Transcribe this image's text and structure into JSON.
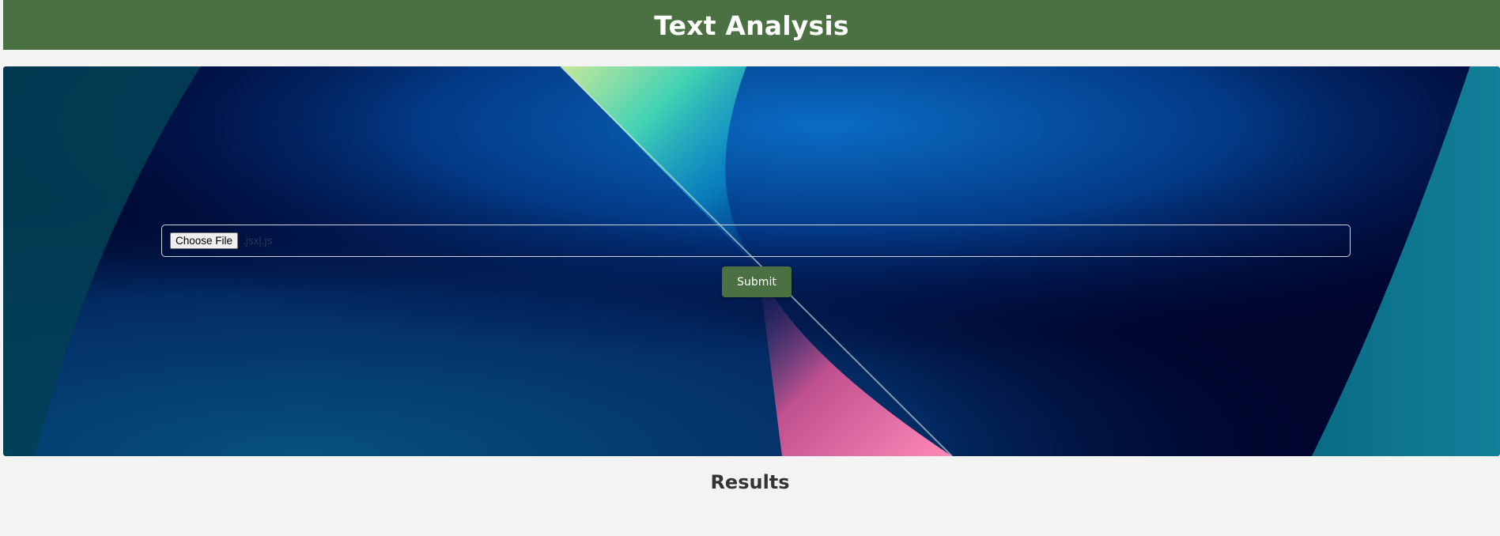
{
  "header": {
    "title": "Text Analysis"
  },
  "upload": {
    "choose_label": "Choose File",
    "accept_text": ".jsx|.js"
  },
  "submit": {
    "label": "Submit"
  },
  "results": {
    "title": "Results"
  },
  "colors": {
    "header_bg": "#4b7142",
    "button_bg": "#4b7142",
    "page_bg": "#f3f3f3",
    "hero_dark": "#00062e",
    "title_text": "#333333"
  },
  "icons": {
    "hero_background": "abstract-light-beam-image"
  }
}
